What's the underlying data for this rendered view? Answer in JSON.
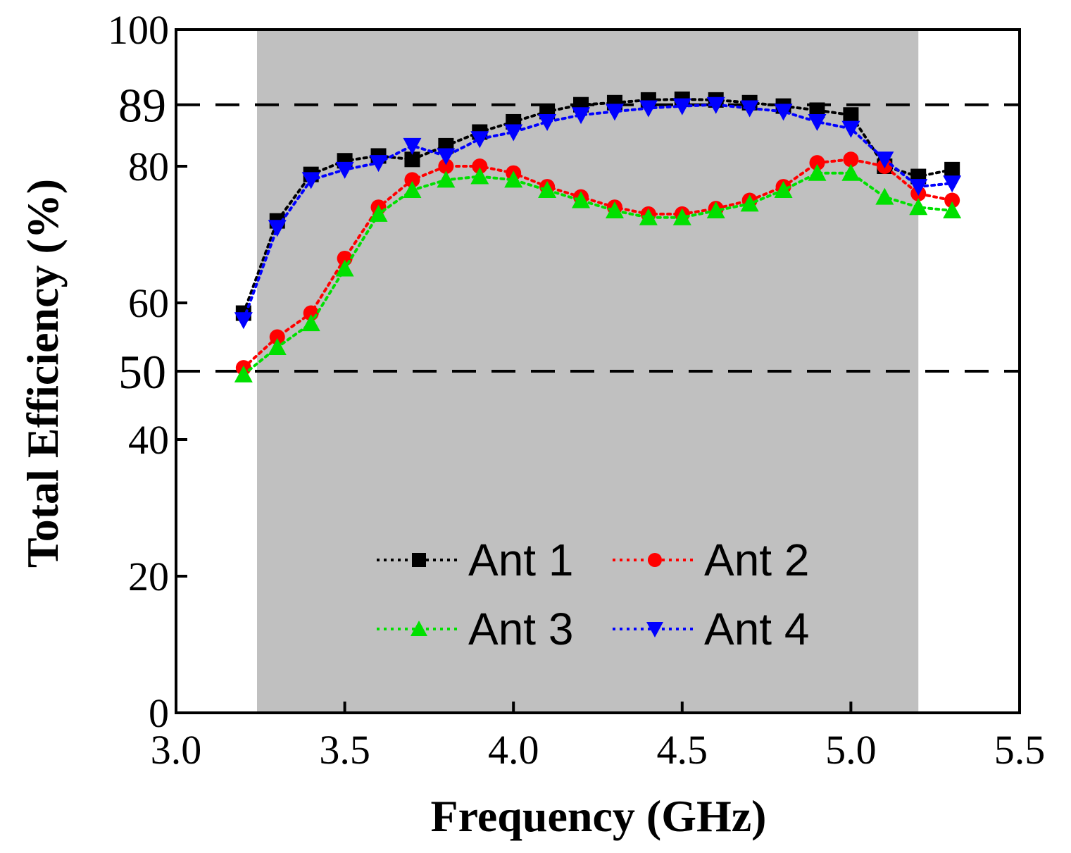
{
  "chart_data": {
    "type": "line",
    "title": "",
    "xlabel": "Frequency (GHz)",
    "ylabel": "Total Efficiency (%)",
    "xlim": [
      3.0,
      5.5
    ],
    "ylim": [
      0,
      100
    ],
    "xticks": [
      "3.0",
      "3.5",
      "4.0",
      "4.5",
      "5.0",
      "5.5"
    ],
    "yticks": [
      "0",
      "20",
      "40",
      "60",
      "80",
      "100"
    ],
    "grid": false,
    "legend_position": "bottom-center",
    "shaded_band": {
      "x_start": 3.24,
      "x_end": 5.2,
      "color": "#c0c0c0"
    },
    "reference_lines": [
      {
        "y": 89,
        "label": "89",
        "style": "dashed"
      },
      {
        "y": 50,
        "label": "50",
        "style": "dashed"
      }
    ],
    "x": [
      3.2,
      3.3,
      3.4,
      3.5,
      3.6,
      3.7,
      3.8,
      3.9,
      4.0,
      4.1,
      4.2,
      4.3,
      4.4,
      4.5,
      4.6,
      4.7,
      4.8,
      4.9,
      5.0,
      5.1,
      5.2,
      5.3
    ],
    "series": [
      {
        "name": "Ant 1",
        "color": "#000000",
        "marker": "square",
        "values": [
          58.5,
          72,
          78.8,
          80.8,
          81.5,
          81,
          83,
          85,
          86.5,
          88,
          89,
          89.3,
          89.7,
          89.8,
          89.7,
          89.3,
          88.8,
          88.2,
          87.5,
          80,
          78.5,
          79.5
        ]
      },
      {
        "name": "Ant 2",
        "color": "#ff0000",
        "marker": "circle",
        "values": [
          50.5,
          55,
          58.5,
          66.5,
          74,
          78,
          80,
          80,
          79,
          77,
          75.5,
          74,
          73,
          73,
          73.8,
          75,
          77,
          80.5,
          81,
          80,
          76,
          75
        ]
      },
      {
        "name": "Ant 3",
        "color": "#00e000",
        "marker": "triangle-up",
        "values": [
          49.5,
          53.5,
          57,
          65,
          73,
          76.5,
          78,
          78.5,
          78,
          76.5,
          75,
          73.5,
          72.5,
          72.5,
          73.5,
          74.5,
          76.5,
          79,
          79,
          75.5,
          74,
          73.5
        ]
      },
      {
        "name": "Ant 4",
        "color": "#0000ff",
        "marker": "triangle-down",
        "values": [
          57.5,
          71,
          78,
          79.5,
          80.5,
          83,
          81.5,
          84,
          85,
          86.5,
          87.5,
          88,
          88.5,
          88.8,
          89,
          88.5,
          88,
          86.5,
          85.5,
          81,
          77,
          77.5
        ]
      }
    ]
  }
}
